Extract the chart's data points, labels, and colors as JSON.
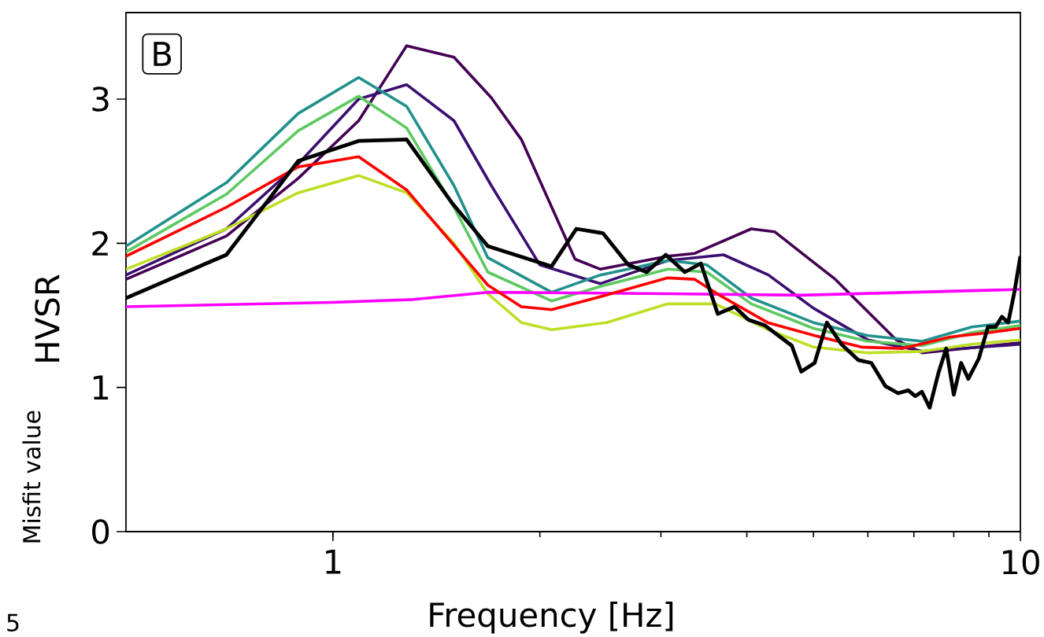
{
  "chart_data": {
    "type": "line",
    "xlabel": "Frequency [Hz]",
    "ylabel": "HVSR",
    "clabel": "Misfit value",
    "log": "x",
    "xlim": [
      0.5,
      10
    ],
    "xticks": [
      1,
      10
    ],
    "ylim": [
      0,
      3.6
    ],
    "yticks": [
      0,
      1,
      2,
      3
    ],
    "annotations": [
      "B",
      "5"
    ],
    "series": [
      {
        "color": "#440154",
        "x": [
          0.5,
          0.7,
          0.89,
          1.09,
          1.28,
          1.5,
          1.7,
          1.88,
          2.25,
          2.45,
          3.07,
          3.36,
          4.06,
          4.39,
          5.38,
          6.6,
          7.2,
          10
        ],
        "values": [
          1.75,
          2.05,
          2.45,
          2.85,
          3.37,
          3.29,
          3.01,
          2.72,
          1.89,
          1.82,
          1.91,
          1.93,
          2.1,
          2.08,
          1.75,
          1.33,
          1.24,
          1.31
        ]
      },
      {
        "color": "#3b0f70",
        "x": [
          0.5,
          0.7,
          0.89,
          1.09,
          1.28,
          1.5,
          1.7,
          2.0,
          2.45,
          3.07,
          3.7,
          4.3,
          5.0,
          6.0,
          7.2,
          10
        ],
        "values": [
          1.78,
          2.1,
          2.55,
          3.0,
          3.1,
          2.85,
          2.4,
          1.85,
          1.72,
          1.88,
          1.92,
          1.78,
          1.55,
          1.33,
          1.25,
          1.3
        ]
      },
      {
        "color": "#21918c",
        "x": [
          0.5,
          0.7,
          0.89,
          1.09,
          1.28,
          1.5,
          1.68,
          2.08,
          2.45,
          3.07,
          3.5,
          4.06,
          5.0,
          6.0,
          7.2,
          8.5,
          10
        ],
        "values": [
          1.98,
          2.42,
          2.9,
          3.15,
          2.95,
          2.4,
          1.9,
          1.66,
          1.78,
          1.88,
          1.85,
          1.62,
          1.45,
          1.36,
          1.32,
          1.42,
          1.46
        ]
      },
      {
        "color": "#5ec962",
        "x": [
          0.5,
          0.7,
          0.89,
          1.09,
          1.28,
          1.5,
          1.68,
          2.08,
          2.45,
          3.07,
          3.5,
          4.06,
          5.0,
          6.0,
          7.2,
          8.5,
          10
        ],
        "values": [
          1.94,
          2.34,
          2.78,
          3.02,
          2.8,
          2.25,
          1.8,
          1.6,
          1.7,
          1.82,
          1.8,
          1.58,
          1.41,
          1.32,
          1.29,
          1.38,
          1.43
        ]
      },
      {
        "color": "#bddf26",
        "x": [
          0.5,
          0.7,
          0.89,
          1.09,
          1.28,
          1.5,
          1.68,
          1.88,
          2.08,
          2.5,
          3.07,
          3.6,
          4.3,
          5.0,
          6.0,
          7.2,
          8.5,
          10
        ],
        "values": [
          1.82,
          2.1,
          2.35,
          2.47,
          2.35,
          2.0,
          1.65,
          1.45,
          1.4,
          1.45,
          1.58,
          1.58,
          1.4,
          1.28,
          1.24,
          1.25,
          1.3,
          1.33
        ]
      },
      {
        "color": "#ff00ff",
        "x": [
          0.5,
          1.0,
          1.31,
          1.68,
          3.07,
          4.8,
          10
        ],
        "values": [
          1.56,
          1.59,
          1.61,
          1.66,
          1.65,
          1.64,
          1.68
        ]
      },
      {
        "color": "#ff0000",
        "x": [
          0.5,
          0.7,
          0.89,
          1.09,
          1.28,
          1.68,
          1.88,
          2.08,
          2.45,
          3.07,
          3.36,
          3.68,
          4.29,
          5.02,
          5.87,
          6.73,
          7.9,
          9.0,
          10
        ],
        "values": [
          1.91,
          2.25,
          2.53,
          2.6,
          2.37,
          1.71,
          1.56,
          1.54,
          1.63,
          1.76,
          1.75,
          1.63,
          1.45,
          1.36,
          1.28,
          1.27,
          1.35,
          1.38,
          1.41
        ]
      },
      {
        "color": "#000000",
        "x": [
          0.5,
          0.7,
          0.89,
          1.09,
          1.28,
          1.49,
          1.68,
          2.08,
          2.26,
          2.47,
          2.69,
          2.86,
          3.05,
          3.25,
          3.43,
          3.63,
          3.84,
          4.02,
          4.25,
          4.65,
          4.8,
          5.02,
          5.23,
          5.49,
          5.81,
          6.07,
          6.36,
          6.64,
          6.87,
          7.03,
          7.19,
          7.38,
          7.6,
          7.8,
          8.0,
          8.2,
          8.4,
          8.7,
          8.97,
          9.2,
          9.4,
          9.6,
          9.8,
          10
        ],
        "values": [
          1.62,
          1.92,
          2.57,
          2.71,
          2.72,
          2.28,
          1.98,
          1.84,
          2.1,
          2.07,
          1.85,
          1.8,
          1.92,
          1.8,
          1.86,
          1.51,
          1.56,
          1.47,
          1.43,
          1.29,
          1.11,
          1.17,
          1.45,
          1.3,
          1.19,
          1.17,
          1.01,
          0.96,
          0.98,
          0.94,
          0.97,
          0.86,
          1.1,
          1.27,
          0.95,
          1.17,
          1.06,
          1.2,
          1.42,
          1.42,
          1.49,
          1.45,
          1.66,
          1.91
        ]
      }
    ]
  }
}
